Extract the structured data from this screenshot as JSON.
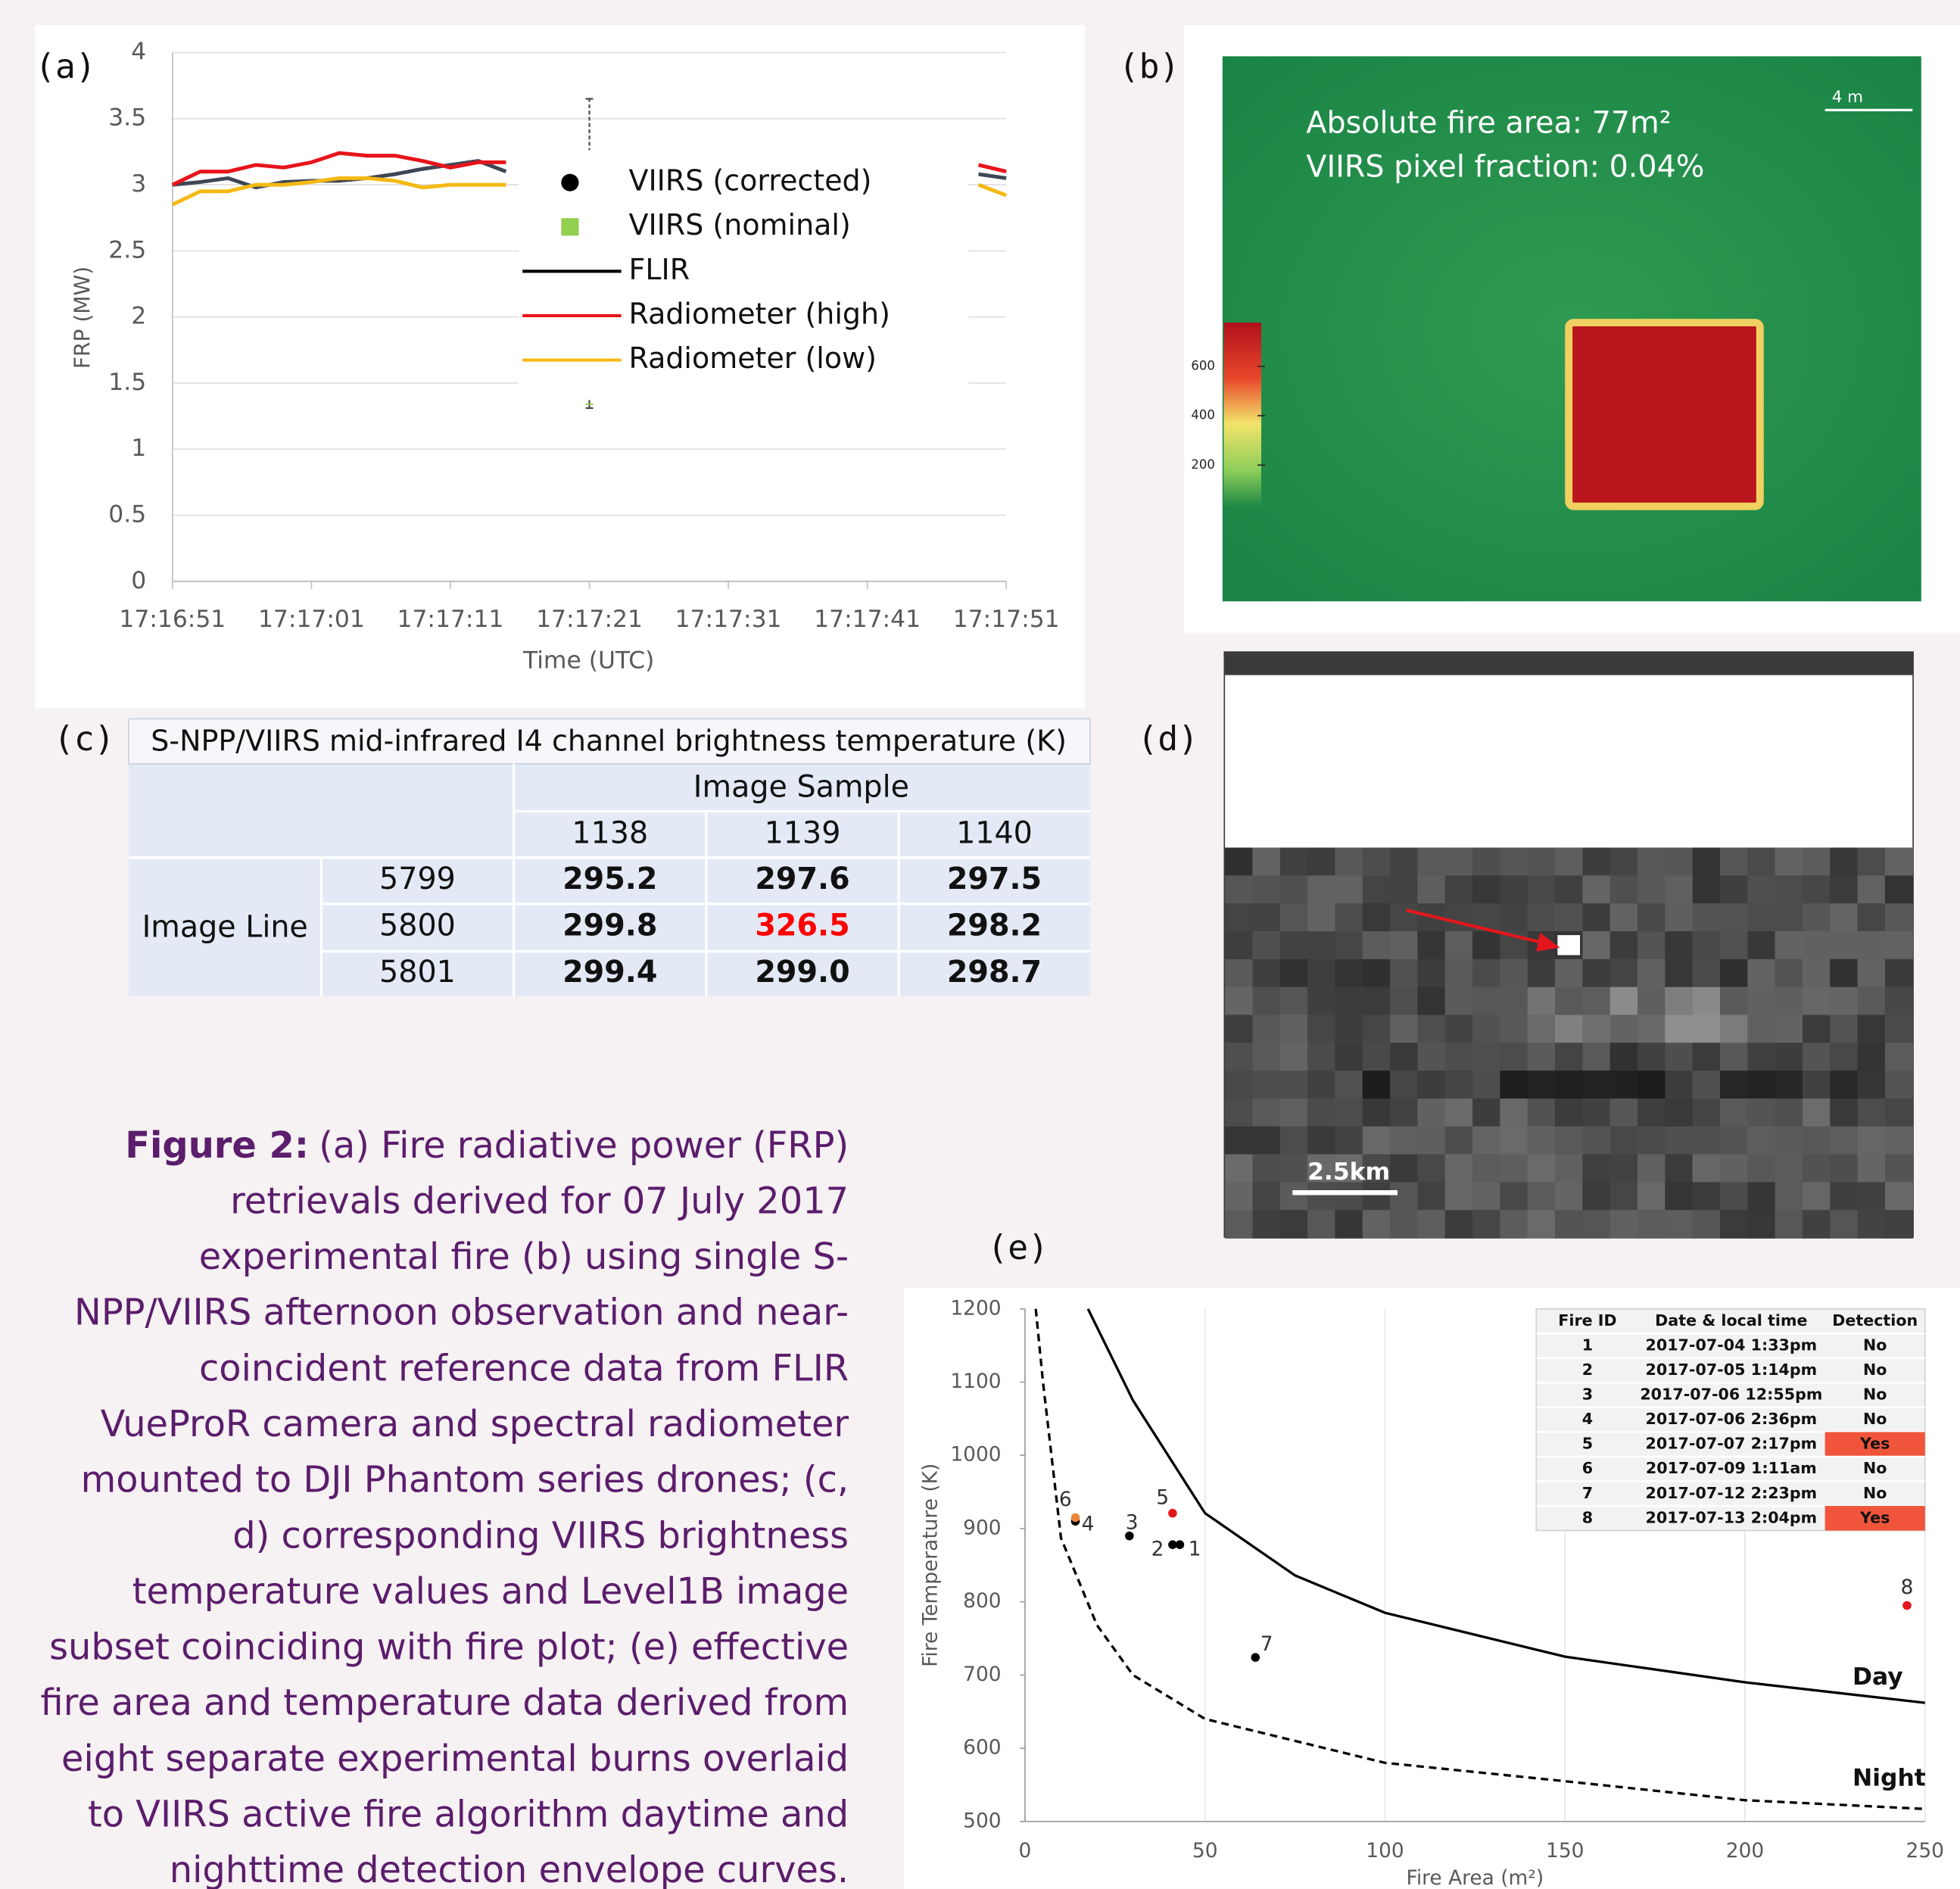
{
  "panel_labels": [
    "(a)",
    "(b)",
    "(c)",
    "(d)",
    "(e)"
  ],
  "chart_data": [
    {
      "type": "line",
      "ylabel": "FRP (MW)",
      "xlabel": "Time (UTC)",
      "xlim": [
        0,
        60
      ],
      "xticks": [
        {
          "value": 0,
          "label": "17:16:51"
        },
        {
          "value": 10,
          "label": "17:17:01"
        },
        {
          "value": 20,
          "label": "17:17:11"
        },
        {
          "value": 30,
          "label": "17:17:21"
        },
        {
          "value": 40,
          "label": "17:17:31"
        },
        {
          "value": 50,
          "label": "17:17:41"
        },
        {
          "value": 60,
          "label": "17:17:51"
        }
      ],
      "ylim": [
        0,
        4
      ],
      "yticks": [
        0,
        0.5,
        1,
        1.5,
        2,
        2.5,
        3,
        3.5,
        4
      ],
      "grid": true,
      "legend": "center-right",
      "series": [
        {
          "name": "VIIRS (corrected)",
          "style": "marker",
          "marker": "circle",
          "color": "#000000",
          "x": [
            30
          ],
          "values": [
            2.48
          ],
          "errors": [
            1.17
          ]
        },
        {
          "name": "VIIRS (nominal)",
          "style": "marker",
          "marker": "square",
          "color": "#92d050",
          "x": [
            30
          ],
          "values": [
            1.38
          ],
          "errors": [
            0.04
          ]
        },
        {
          "name": "FLIR",
          "style": "line",
          "color": "#3e4756",
          "x": [
            0,
            2,
            4,
            6,
            8,
            10,
            12,
            14,
            16,
            18,
            20,
            22,
            24,
            41,
            58,
            60
          ],
          "values": [
            3.0,
            3.02,
            3.05,
            2.98,
            3.02,
            3.03,
            3.03,
            3.05,
            3.08,
            3.12,
            3.15,
            3.18,
            3.1,
            null,
            3.08,
            3.05
          ]
        },
        {
          "name": "Radiometer (high)",
          "style": "line",
          "color": "#e8141b",
          "x": [
            0,
            2,
            4,
            6,
            8,
            10,
            12,
            14,
            16,
            18,
            20,
            22,
            24,
            41,
            58,
            60
          ],
          "values": [
            3.0,
            3.1,
            3.1,
            3.15,
            3.13,
            3.17,
            3.24,
            3.22,
            3.22,
            3.18,
            3.13,
            3.17,
            3.17,
            null,
            3.15,
            3.1
          ]
        },
        {
          "name": "Radiometer (low)",
          "style": "line",
          "color": "#f5b914",
          "x": [
            0,
            2,
            4,
            6,
            8,
            10,
            12,
            14,
            16,
            18,
            20,
            22,
            24,
            41,
            58,
            60
          ],
          "values": [
            2.85,
            2.95,
            2.95,
            3.0,
            3.0,
            3.02,
            3.05,
            3.05,
            3.03,
            2.98,
            3.0,
            3.0,
            3.0,
            null,
            3.0,
            2.92
          ]
        }
      ]
    },
    {
      "type": "scatter",
      "xlabel": "Fire Area (m²)",
      "ylabel": "Fire Temperature (K)",
      "xlim": [
        0,
        250
      ],
      "ylim": [
        500,
        1200
      ],
      "xticks": [
        0,
        50,
        100,
        150,
        200,
        250
      ],
      "yticks": [
        500,
        600,
        700,
        800,
        900,
        1000,
        1100,
        1200
      ],
      "grid": "x",
      "points": {
        "x": [
          43,
          41,
          29,
          14,
          41,
          14,
          64,
          245
        ],
        "values": [
          878,
          878,
          890,
          910,
          921,
          915,
          724,
          795
        ],
        "labels": [
          "1",
          "2",
          "3",
          "4",
          "5",
          "6",
          "7",
          "8"
        ],
        "colors": [
          "#000000",
          "#000000",
          "#000000",
          "#000000",
          "#e5161b",
          "#e8863a",
          "#000000",
          "#e5161b"
        ]
      },
      "series": [
        {
          "name": "Day",
          "style": "solid",
          "color": "#000000",
          "x": [
            17.5,
            30,
            50,
            75,
            100,
            150,
            200,
            250
          ],
          "values": [
            1200,
            1075,
            921,
            836,
            785,
            725,
            690,
            662
          ]
        },
        {
          "name": "Night",
          "style": "dashed",
          "color": "#000000",
          "x": [
            3,
            5,
            10,
            20,
            30,
            50,
            100,
            150,
            200,
            250
          ],
          "values": [
            1200,
            1100,
            887,
            768,
            700,
            640,
            580,
            555,
            529,
            517
          ]
        }
      ],
      "table": {
        "columns": [
          "Fire ID",
          "Date & local time",
          "Detection"
        ],
        "rows": [
          [
            "1",
            "2017-07-04 1:33pm",
            "No"
          ],
          [
            "2",
            "2017-07-05 1:14pm",
            "No"
          ],
          [
            "3",
            "2017-07-06 12:55pm",
            "No"
          ],
          [
            "4",
            "2017-07-06 2:36pm",
            "No"
          ],
          [
            "5",
            "2017-07-07 2:17pm",
            "Yes"
          ],
          [
            "6",
            "2017-07-09 1:11am",
            "No"
          ],
          [
            "7",
            "2017-07-12 2:23pm",
            "No"
          ],
          [
            "8",
            "2017-07-13 2:04pm",
            "Yes"
          ]
        ],
        "cell_colors": [
          null,
          null,
          null,
          null,
          "#f0553c",
          null,
          null,
          "#f0553c"
        ]
      }
    }
  ],
  "image_b": {
    "lines": [
      "Absolute fire area: 77m²",
      "VIIRS pixel fraction: 0.04%"
    ],
    "scale_label": "4 m",
    "colorbar_ticks": [
      600,
      400,
      200
    ]
  },
  "table_c": {
    "title": "S-NPP/VIIRS mid-infrared I4 channel brightness temperature (K)",
    "column_group": "Image Sample",
    "columns": [
      "1138",
      "1139",
      "1140"
    ],
    "row_group": "Image Line",
    "rows": [
      {
        "label": "5799",
        "cells": [
          "295.2",
          "297.6",
          "297.5"
        ]
      },
      {
        "label": "5800",
        "cells": [
          "299.8",
          "326.5",
          "298.2"
        ]
      },
      {
        "label": "5801",
        "cells": [
          "299.4",
          "299.0",
          "298.7"
        ]
      }
    ],
    "cell_colors": [
      [
        null,
        null,
        null
      ],
      [
        null,
        "#ff0000",
        null
      ],
      [
        null,
        null,
        null
      ]
    ]
  },
  "image_d": {
    "scale_label": "2.5km"
  },
  "caption": {
    "lead": "Figure 2:",
    "lines": [
      "(a) Fire radiative power (FRP)",
      "retrievals derived for 07 July 2017",
      "experimental fire (b) using single S-",
      "NPP/VIIRS afternoon observation and near-",
      "coincident reference data from FLIR",
      "VueProR camera and spectral radiometer",
      "mounted to DJI Phantom series drones; (c,",
      "d) corresponding VIIRS brightness",
      "temperature values and Level1B image",
      "subset coinciding with fire plot; (e) effective",
      "fire area and temperature data derived from",
      "eight separate experimental burns overlaid",
      "to VIIRS active fire algorithm daytime and",
      "nighttime detection envelope curves."
    ]
  }
}
